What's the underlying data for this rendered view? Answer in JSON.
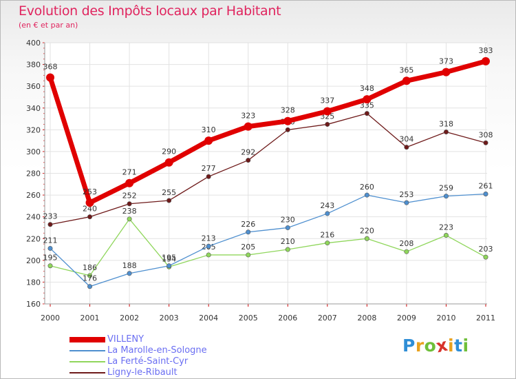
{
  "chart_data": {
    "type": "line",
    "title": "Evolution des Impôts locaux par Habitant",
    "subtitle": "(en € et par an)",
    "x": [
      "2000",
      "2001",
      "2002",
      "2003",
      "2004",
      "2005",
      "2006",
      "2007",
      "2008",
      "2009",
      "2010",
      "2011"
    ],
    "ylim": [
      160,
      400
    ],
    "yticks": [
      160,
      180,
      200,
      220,
      240,
      260,
      280,
      300,
      320,
      340,
      360,
      380,
      400
    ],
    "grid": true,
    "legend_position": "bottom-left",
    "series": [
      {
        "name": "VILLENY",
        "color": "#e00000",
        "values": [
          368,
          253,
          271,
          290,
          310,
          323,
          328,
          337,
          348,
          365,
          373,
          383
        ]
      },
      {
        "name": "La Marolle-en-Sologne",
        "color": "#4e8fcf",
        "values": [
          211,
          176,
          188,
          195,
          213,
          226,
          230,
          243,
          260,
          253,
          259,
          261
        ]
      },
      {
        "name": "La Ferté-Saint-Cyr",
        "color": "#8fd65b",
        "values": [
          195,
          186,
          238,
          194,
          205,
          205,
          210,
          216,
          220,
          208,
          223,
          203
        ]
      },
      {
        "name": "Ligny-le-Ribault",
        "color": "#6e1a1a",
        "values": [
          233,
          240,
          252,
          255,
          277,
          292,
          320,
          325,
          335,
          304,
          318,
          308
        ]
      }
    ]
  },
  "brand": {
    "letters": [
      "P",
      "r",
      "o",
      "x",
      "i",
      "t",
      "i"
    ],
    "colors": [
      "#2f8ed6",
      "#e9a21f",
      "#6fbf3a",
      "#d8322b",
      "#e9a21f",
      "#2f8ed6",
      "#6fbf3a"
    ]
  }
}
